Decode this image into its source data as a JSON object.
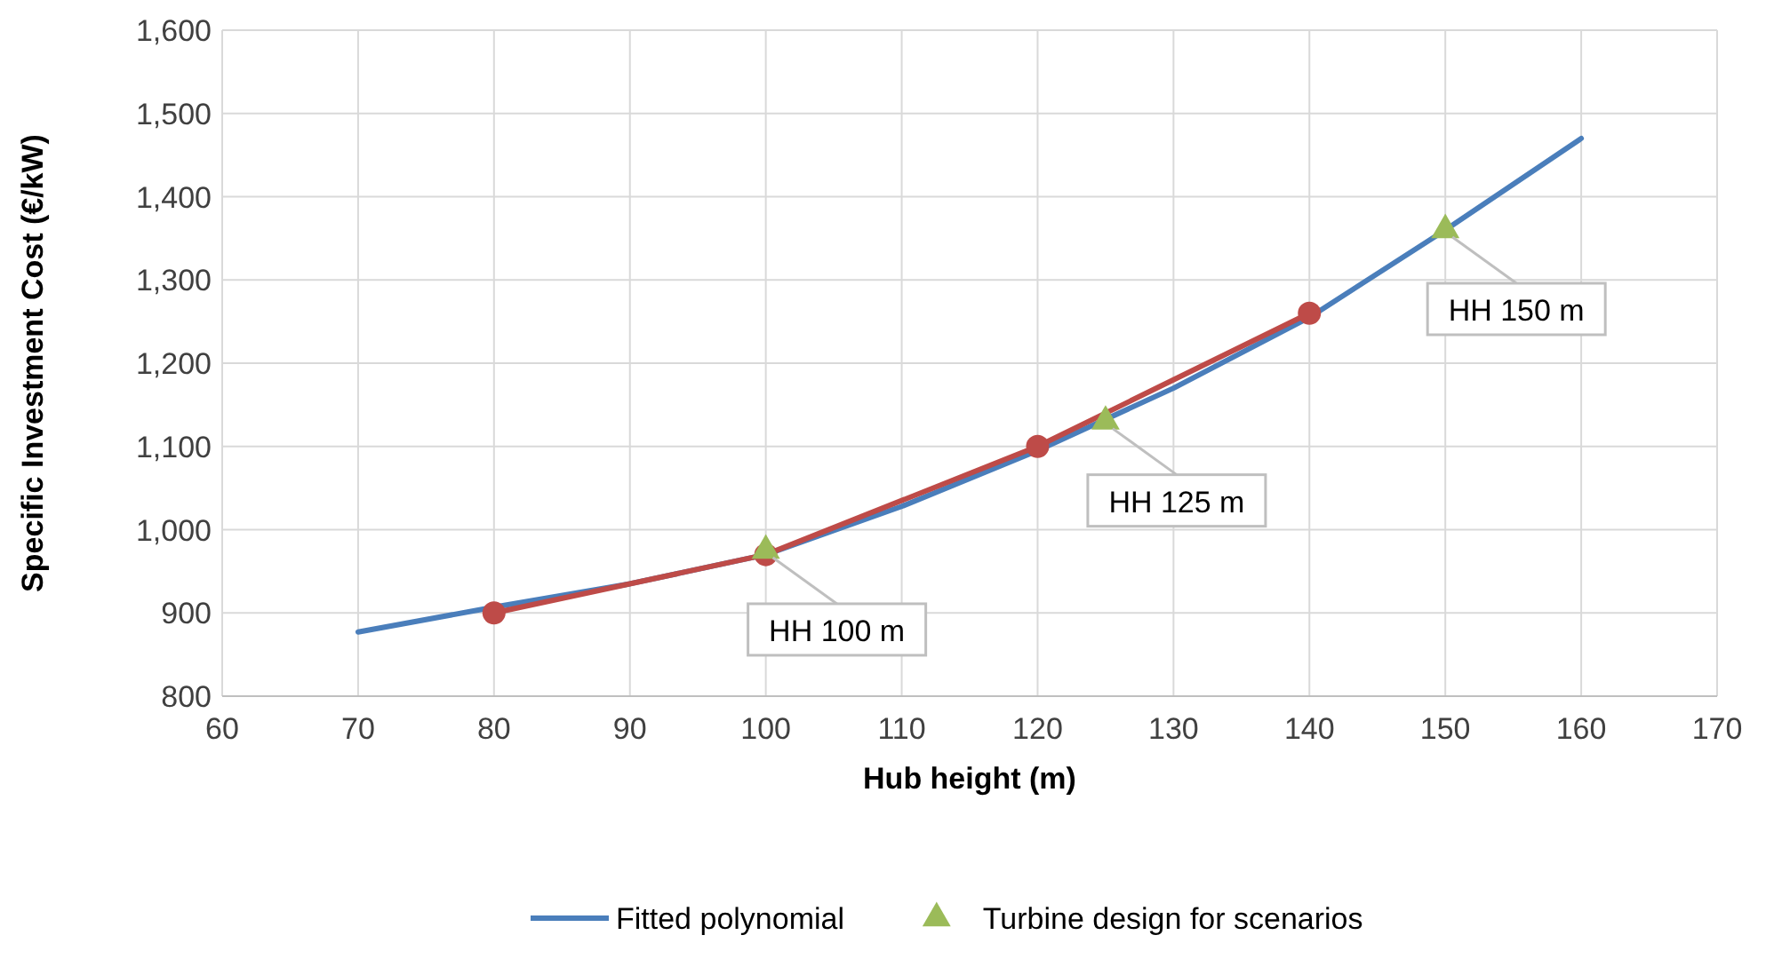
{
  "chart_data": {
    "type": "line",
    "xlabel": "Hub height (m)",
    "ylabel": "Specific Investment Cost (€/kW)",
    "xlim": [
      60,
      170
    ],
    "xticks": [
      60,
      70,
      80,
      90,
      100,
      110,
      120,
      130,
      140,
      150,
      160,
      170
    ],
    "ylim": [
      800,
      1600
    ],
    "yticks": [
      {
        "value": 800,
        "label": "800"
      },
      {
        "value": 900,
        "label": "900"
      },
      {
        "value": 1000,
        "label": "1,000"
      },
      {
        "value": 1100,
        "label": "1,100"
      },
      {
        "value": 1200,
        "label": "1,200"
      },
      {
        "value": 1300,
        "label": "1,300"
      },
      {
        "value": 1400,
        "label": "1,400"
      },
      {
        "value": 1500,
        "label": "1,500"
      },
      {
        "value": 1600,
        "label": "1,600"
      }
    ],
    "grid": true,
    "legend": "bottom",
    "series": [
      {
        "name": "Fitted polynomial",
        "color": "#4a7ebb",
        "marker": "none",
        "x": [
          70,
          80,
          90,
          100,
          110,
          120,
          130,
          140,
          150,
          160
        ],
        "values": [
          877,
          907,
          935,
          970,
          1028,
          1095,
          1170,
          1255,
          1360,
          1470
        ]
      },
      {
        "color": "#be4b48",
        "marker": "circle",
        "x": [
          80,
          100,
          120,
          140
        ],
        "values": [
          900,
          970,
          1100,
          1260
        ]
      },
      {
        "name": "Turbine design for scenarios",
        "color": "#9bbb59",
        "type": "scatter",
        "marker": "triangle",
        "x": [
          100,
          125,
          150
        ],
        "values": [
          975,
          1130,
          1360
        ]
      }
    ],
    "annotations": [
      {
        "text": "HH 100 m",
        "x": 100,
        "y": 975
      },
      {
        "text": "HH 125 m",
        "x": 125,
        "y": 1130
      },
      {
        "text": "HH 150 m",
        "x": 150,
        "y": 1360
      }
    ]
  }
}
